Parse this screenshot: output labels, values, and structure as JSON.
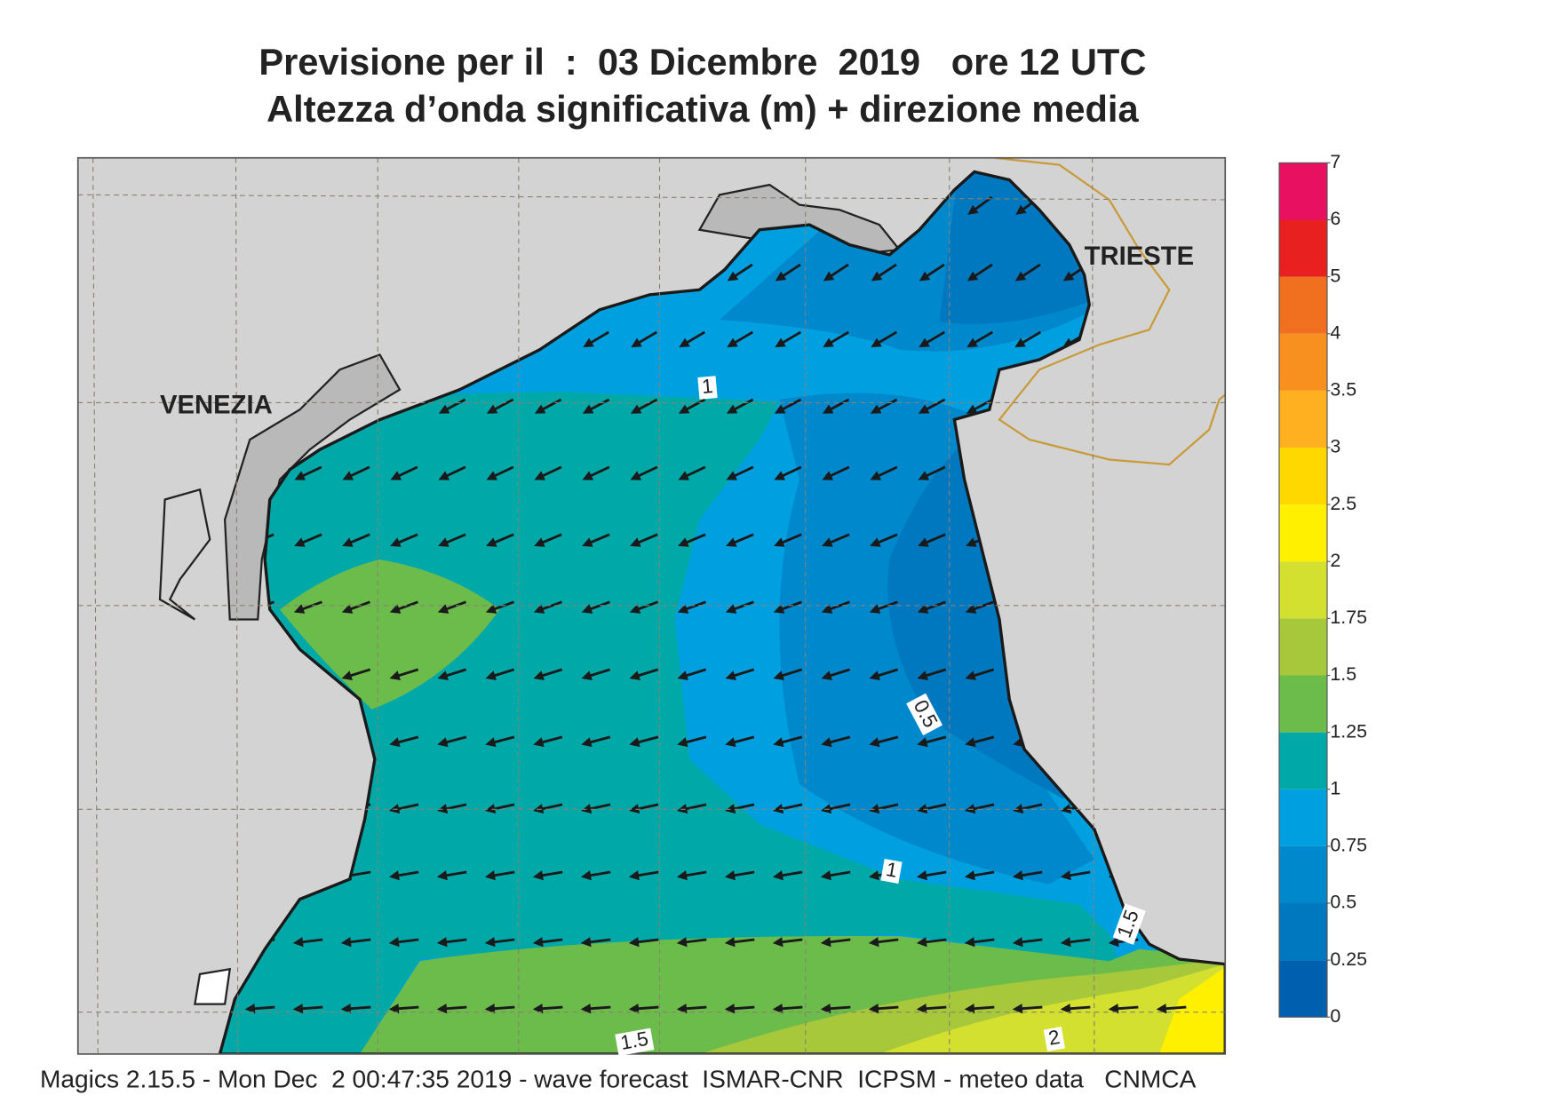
{
  "header": {
    "title": "Previsione per il  :  03 Dicembre  2019   ore 12 UTC",
    "subtitle": "Altezza d’onda significativa (m) + direzione media"
  },
  "map": {
    "places": [
      "VENEZIA",
      "TRIESTE"
    ],
    "contour_labels": [
      1,
      0.5,
      1,
      1.5,
      1.5,
      2
    ]
  },
  "colorbar": {
    "levels": [
      0,
      0.25,
      0.5,
      0.75,
      1,
      1.25,
      1.5,
      1.75,
      2,
      2.5,
      3,
      3.5,
      4,
      5,
      6,
      7
    ],
    "colors": [
      "#0060b0",
      "#0078c0",
      "#0088cc",
      "#00a0e0",
      "#00a8a8",
      "#6cbc4c",
      "#a8c83c",
      "#d4e030",
      "#fff000",
      "#ffd800",
      "#ffb020",
      "#f89020",
      "#f07020",
      "#e82020",
      "#e81060"
    ]
  },
  "footer": "Magics 2.15.5 - Mon Dec  2 00:47:35 2019 - wave forecast  ISMAR-CNR  ICPSM - meteo data   CNMCA"
}
